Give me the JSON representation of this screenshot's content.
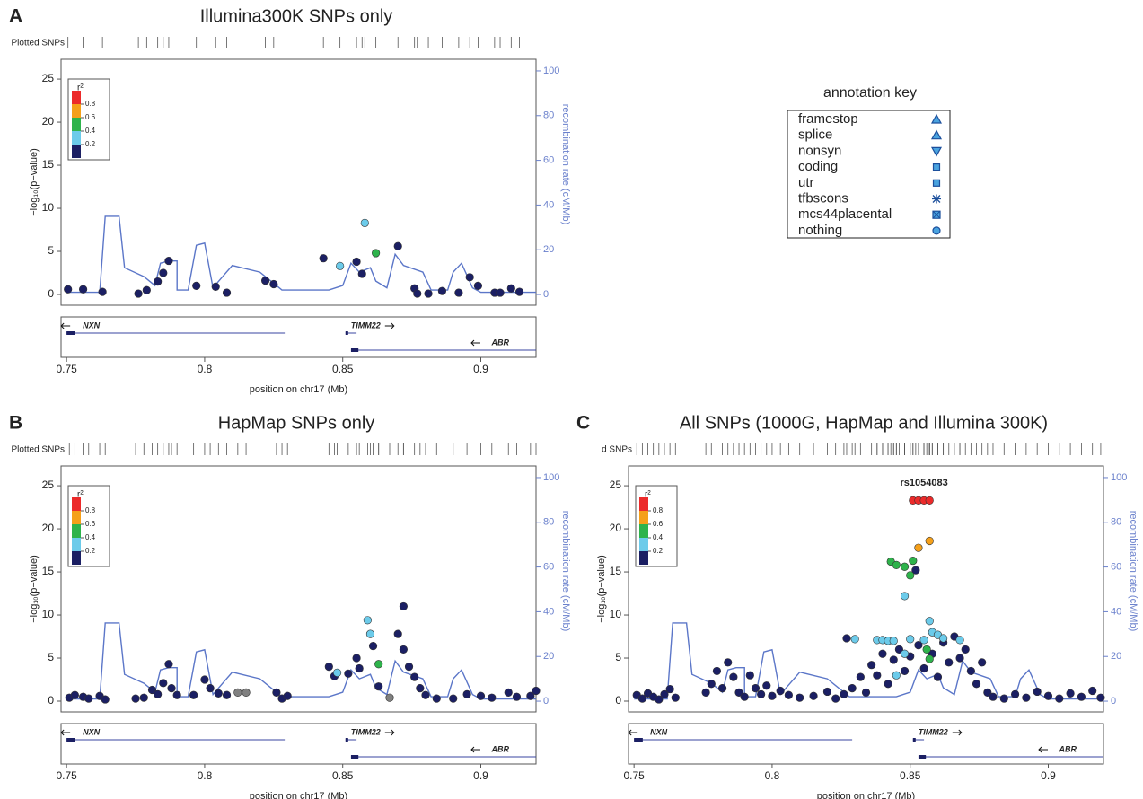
{
  "chart_data": [
    {
      "type": "scatter",
      "panel_label": "A",
      "title": "Illumina300K SNPs only",
      "rug_label": "Plotted SNPs",
      "x_label": "position on chr17 (Mb)",
      "y_label": "−log₁₀(p−value)",
      "y2_label": "recombination rate (cM/Mb)",
      "xlim": [
        0.748,
        0.92
      ],
      "xticks": [
        0.75,
        0.8,
        0.85,
        0.9
      ],
      "ylim": [
        -1.25,
        27.3
      ],
      "yticks": [
        0,
        5,
        10,
        15,
        20,
        25
      ],
      "y2lim": [
        -4.8,
        105.2
      ],
      "y2ticks": [
        0,
        20,
        40,
        60,
        80,
        100
      ],
      "r2_legend": {
        "title": "r²",
        "colors": [
          "#1b1f63",
          "#6ccbea",
          "#2eb34b",
          "#f5a01a",
          "#ec2a2a"
        ],
        "ticks": [
          0.2,
          0.4,
          0.6,
          0.8
        ]
      },
      "genes": [
        {
          "name": "NXN",
          "start": 0.75,
          "end": 0.829,
          "strand": "-"
        },
        {
          "name": "TIMM22",
          "start": 0.851,
          "end": 0.855,
          "strand": "+"
        },
        {
          "name": "ABR",
          "start": 0.853,
          "end": 0.92,
          "strand": "-"
        }
      ],
      "series": [
        {
          "color": "#1b1f63",
          "x": [
            0.7505,
            0.756,
            0.763,
            0.776,
            0.779,
            0.783,
            0.785,
            0.787,
            0.797,
            0.804,
            0.808,
            0.822,
            0.825,
            0.843,
            0.855,
            0.857,
            0.87,
            0.876,
            0.877,
            0.881,
            0.886,
            0.892,
            0.896,
            0.899,
            0.905,
            0.907,
            0.911,
            0.914
          ],
          "values": [
            0.6,
            0.6,
            0.3,
            0.1,
            0.5,
            1.5,
            2.5,
            3.9,
            1.0,
            0.9,
            0.2,
            1.6,
            1.2,
            4.2,
            3.8,
            2.4,
            5.6,
            0.7,
            0.1,
            0.1,
            0.4,
            0.2,
            2.0,
            1.0,
            0.2,
            0.2,
            0.7,
            0.3
          ]
        },
        {
          "color": "#6ccbea",
          "x": [
            0.849,
            0.858
          ],
          "values": [
            3.3,
            8.3
          ]
        },
        {
          "color": "#2eb34b",
          "x": [
            0.862
          ],
          "values": [
            4.8
          ]
        },
        {
          "axis": "y2",
          "color": "#5b76c8",
          "x": [
            0.75,
            0.762,
            0.764,
            0.769,
            0.771,
            0.778,
            0.782,
            0.784,
            0.787,
            0.79,
            0.79,
            0.794,
            0.797,
            0.8,
            0.803,
            0.81,
            0.82,
            0.825,
            0.828,
            0.845,
            0.85,
            0.853,
            0.856,
            0.86,
            0.862,
            0.866,
            0.869,
            0.872,
            0.879,
            0.882,
            0.888,
            0.89,
            0.893,
            0.897,
            0.9,
            0.92
          ],
          "values": [
            1,
            1,
            35,
            35,
            12,
            8,
            4,
            14,
            15,
            15,
            2,
            2,
            22,
            23,
            3,
            13,
            10,
            5,
            2,
            2,
            4,
            14,
            10,
            12,
            6,
            3,
            18,
            13,
            10,
            2,
            2,
            10,
            14,
            3,
            1,
            1
          ]
        }
      ]
    },
    {
      "type": "scatter",
      "panel_label": "B",
      "title": "HapMap SNPs only",
      "rug_label": "Plotted SNPs",
      "x_label": "position on chr17 (Mb)",
      "y_label": "−log₁₀(p−value)",
      "y2_label": "recombination rate (cM/Mb)",
      "xlim": [
        0.748,
        0.92
      ],
      "xticks": [
        0.75,
        0.8,
        0.85,
        0.9
      ],
      "ylim": [
        -1.25,
        27.3
      ],
      "yticks": [
        0,
        5,
        10,
        15,
        20,
        25
      ],
      "y2lim": [
        -4.8,
        105.2
      ],
      "y2ticks": [
        0,
        20,
        40,
        60,
        80,
        100
      ],
      "r2_legend": {
        "title": "r²",
        "colors": [
          "#1b1f63",
          "#6ccbea",
          "#2eb34b",
          "#f5a01a",
          "#ec2a2a"
        ],
        "ticks": [
          0.2,
          0.4,
          0.6,
          0.8
        ]
      },
      "genes": [
        {
          "name": "NXN",
          "start": 0.75,
          "end": 0.829,
          "strand": "-"
        },
        {
          "name": "TIMM22",
          "start": 0.851,
          "end": 0.855,
          "strand": "+"
        },
        {
          "name": "ABR",
          "start": 0.853,
          "end": 0.92,
          "strand": "-"
        }
      ],
      "series": [
        {
          "color": "#1b1f63",
          "x": [
            0.751,
            0.753,
            0.756,
            0.758,
            0.762,
            0.764,
            0.775,
            0.778,
            0.781,
            0.783,
            0.785,
            0.787,
            0.788,
            0.79,
            0.796,
            0.8,
            0.802,
            0.805,
            0.808,
            0.826,
            0.828,
            0.83,
            0.845,
            0.847,
            0.852,
            0.855,
            0.856,
            0.861,
            0.863,
            0.87,
            0.872,
            0.872,
            0.874,
            0.876,
            0.878,
            0.88,
            0.884,
            0.89,
            0.895,
            0.9,
            0.904,
            0.91,
            0.913,
            0.918,
            0.92
          ],
          "values": [
            0.4,
            0.7,
            0.5,
            0.3,
            0.6,
            0.2,
            0.3,
            0.4,
            1.3,
            0.8,
            2.1,
            4.3,
            1.5,
            0.7,
            0.7,
            2.5,
            1.5,
            0.9,
            0.7,
            1.0,
            0.3,
            0.6,
            4.0,
            2.9,
            3.2,
            5.0,
            3.8,
            6.4,
            1.7,
            7.8,
            6.0,
            11.0,
            4.0,
            2.8,
            1.5,
            0.7,
            0.3,
            0.3,
            0.8,
            0.6,
            0.4,
            1.0,
            0.5,
            0.6,
            1.2
          ]
        },
        {
          "color": "#6ccbea",
          "x": [
            0.848,
            0.859,
            0.86
          ],
          "values": [
            3.3,
            9.4,
            7.8
          ]
        },
        {
          "color": "#2eb34b",
          "x": [
            0.863
          ],
          "values": [
            4.3
          ]
        },
        {
          "color": "#808080",
          "x": [
            0.812,
            0.815,
            0.867
          ],
          "values": [
            1.0,
            1.0,
            0.4
          ]
        },
        {
          "axis": "y2",
          "color": "#5b76c8",
          "x": [
            0.75,
            0.762,
            0.764,
            0.769,
            0.771,
            0.778,
            0.782,
            0.784,
            0.787,
            0.79,
            0.79,
            0.794,
            0.797,
            0.8,
            0.803,
            0.81,
            0.82,
            0.825,
            0.828,
            0.845,
            0.85,
            0.853,
            0.856,
            0.86,
            0.862,
            0.866,
            0.869,
            0.872,
            0.879,
            0.882,
            0.888,
            0.89,
            0.893,
            0.897,
            0.9,
            0.92
          ],
          "values": [
            1,
            1,
            35,
            35,
            12,
            8,
            4,
            14,
            15,
            15,
            2,
            2,
            22,
            23,
            3,
            13,
            10,
            5,
            2,
            2,
            4,
            14,
            10,
            12,
            6,
            3,
            18,
            13,
            10,
            2,
            2,
            10,
            14,
            3,
            1,
            1
          ]
        }
      ]
    },
    {
      "type": "scatter",
      "panel_label": "C",
      "title": "All SNPs (1000G, HapMap and Illumina 300K)",
      "rug_label": "d SNPs",
      "x_label": "position on chr17 (Mb)",
      "y_label": "−log₁₀(p−value)",
      "y2_label": "recombination rate (cM/Mb)",
      "xlim": [
        0.748,
        0.92
      ],
      "xticks": [
        0.75,
        0.8,
        0.85,
        0.9
      ],
      "ylim": [
        -1.25,
        27.3
      ],
      "yticks": [
        0,
        5,
        10,
        15,
        20,
        25
      ],
      "y2lim": [
        -4.8,
        105.2
      ],
      "y2ticks": [
        0,
        20,
        40,
        60,
        80,
        100
      ],
      "annotation": {
        "text": "rs1054083",
        "x": 0.855,
        "y": 25.3
      },
      "r2_legend": {
        "title": "r²",
        "colors": [
          "#1b1f63",
          "#6ccbea",
          "#2eb34b",
          "#f5a01a",
          "#ec2a2a"
        ],
        "ticks": [
          0.2,
          0.4,
          0.6,
          0.8
        ]
      },
      "genes": [
        {
          "name": "NXN",
          "start": 0.75,
          "end": 0.829,
          "strand": "-"
        },
        {
          "name": "TIMM22",
          "start": 0.851,
          "end": 0.855,
          "strand": "+"
        },
        {
          "name": "ABR",
          "start": 0.853,
          "end": 0.92,
          "strand": "-"
        }
      ],
      "series": [
        {
          "color": "#1b1f63",
          "x": [
            0.751,
            0.753,
            0.755,
            0.757,
            0.759,
            0.761,
            0.763,
            0.765,
            0.776,
            0.778,
            0.78,
            0.782,
            0.784,
            0.786,
            0.788,
            0.79,
            0.792,
            0.794,
            0.796,
            0.798,
            0.8,
            0.803,
            0.806,
            0.81,
            0.815,
            0.82,
            0.823,
            0.826,
            0.827,
            0.829,
            0.832,
            0.834,
            0.836,
            0.838,
            0.84,
            0.842,
            0.844,
            0.846,
            0.848,
            0.85,
            0.852,
            0.853,
            0.855,
            0.858,
            0.86,
            0.862,
            0.864,
            0.866,
            0.868,
            0.87,
            0.872,
            0.874,
            0.876,
            0.878,
            0.88,
            0.884,
            0.888,
            0.892,
            0.896,
            0.9,
            0.904,
            0.908,
            0.912,
            0.916,
            0.919
          ],
          "values": [
            0.7,
            0.3,
            0.9,
            0.5,
            0.2,
            0.8,
            1.4,
            0.4,
            1.0,
            2.0,
            3.5,
            1.5,
            4.5,
            2.8,
            1.0,
            0.5,
            3.0,
            1.5,
            0.8,
            1.8,
            0.6,
            1.2,
            0.7,
            0.4,
            0.6,
            1.1,
            0.3,
            0.8,
            7.3,
            1.5,
            2.8,
            1.0,
            4.2,
            3.0,
            5.5,
            2.0,
            4.8,
            6.0,
            3.5,
            5.2,
            15.2,
            6.5,
            3.8,
            5.5,
            2.8,
            6.8,
            4.5,
            7.5,
            5.0,
            6.0,
            3.5,
            2.0,
            4.5,
            1.0,
            0.5,
            0.3,
            0.8,
            0.4,
            1.1,
            0.6,
            0.3,
            0.9,
            0.5,
            1.2,
            0.4
          ]
        },
        {
          "color": "#6ccbea",
          "x": [
            0.83,
            0.838,
            0.84,
            0.842,
            0.844,
            0.848,
            0.85,
            0.855,
            0.857,
            0.858,
            0.86,
            0.862,
            0.868,
            0.848,
            0.845
          ],
          "values": [
            7.2,
            7.1,
            7.1,
            7.0,
            7.0,
            12.2,
            7.2,
            7.1,
            9.3,
            8.0,
            7.7,
            7.3,
            7.1,
            5.5,
            3.0
          ]
        },
        {
          "color": "#2eb34b",
          "x": [
            0.843,
            0.845,
            0.848,
            0.85,
            0.851,
            0.856,
            0.857
          ],
          "values": [
            16.2,
            15.8,
            15.6,
            14.6,
            16.3,
            6.0,
            4.9
          ]
        },
        {
          "color": "#f5a01a",
          "x": [
            0.853,
            0.857
          ],
          "values": [
            17.8,
            18.6
          ]
        },
        {
          "color": "#ec2a2a",
          "x": [
            0.851,
            0.853,
            0.855,
            0.857
          ],
          "values": [
            23.3,
            23.3,
            23.3,
            23.3
          ]
        },
        {
          "axis": "y2",
          "color": "#5b76c8",
          "x": [
            0.75,
            0.762,
            0.764,
            0.769,
            0.771,
            0.778,
            0.782,
            0.784,
            0.787,
            0.79,
            0.79,
            0.794,
            0.797,
            0.8,
            0.803,
            0.81,
            0.82,
            0.825,
            0.828,
            0.845,
            0.85,
            0.853,
            0.856,
            0.86,
            0.862,
            0.866,
            0.869,
            0.872,
            0.879,
            0.882,
            0.888,
            0.89,
            0.893,
            0.897,
            0.9,
            0.92
          ],
          "values": [
            1,
            1,
            35,
            35,
            12,
            8,
            4,
            14,
            15,
            15,
            2,
            2,
            22,
            23,
            3,
            13,
            10,
            5,
            2,
            2,
            4,
            14,
            10,
            12,
            6,
            3,
            18,
            13,
            10,
            2,
            2,
            10,
            14,
            3,
            1,
            1
          ]
        }
      ]
    }
  ],
  "annotation_key": {
    "title": "annotation key",
    "items": [
      {
        "label": "framestop",
        "shape": "triangle-up"
      },
      {
        "label": "splice",
        "shape": "triangle-up"
      },
      {
        "label": "nonsyn",
        "shape": "triangle-down"
      },
      {
        "label": "coding",
        "shape": "square"
      },
      {
        "label": "utr",
        "shape": "square"
      },
      {
        "label": "tfbscons",
        "shape": "asterisk"
      },
      {
        "label": "mcs44placental",
        "shape": "crossed-square"
      },
      {
        "label": "nothing",
        "shape": "circle"
      }
    ]
  }
}
